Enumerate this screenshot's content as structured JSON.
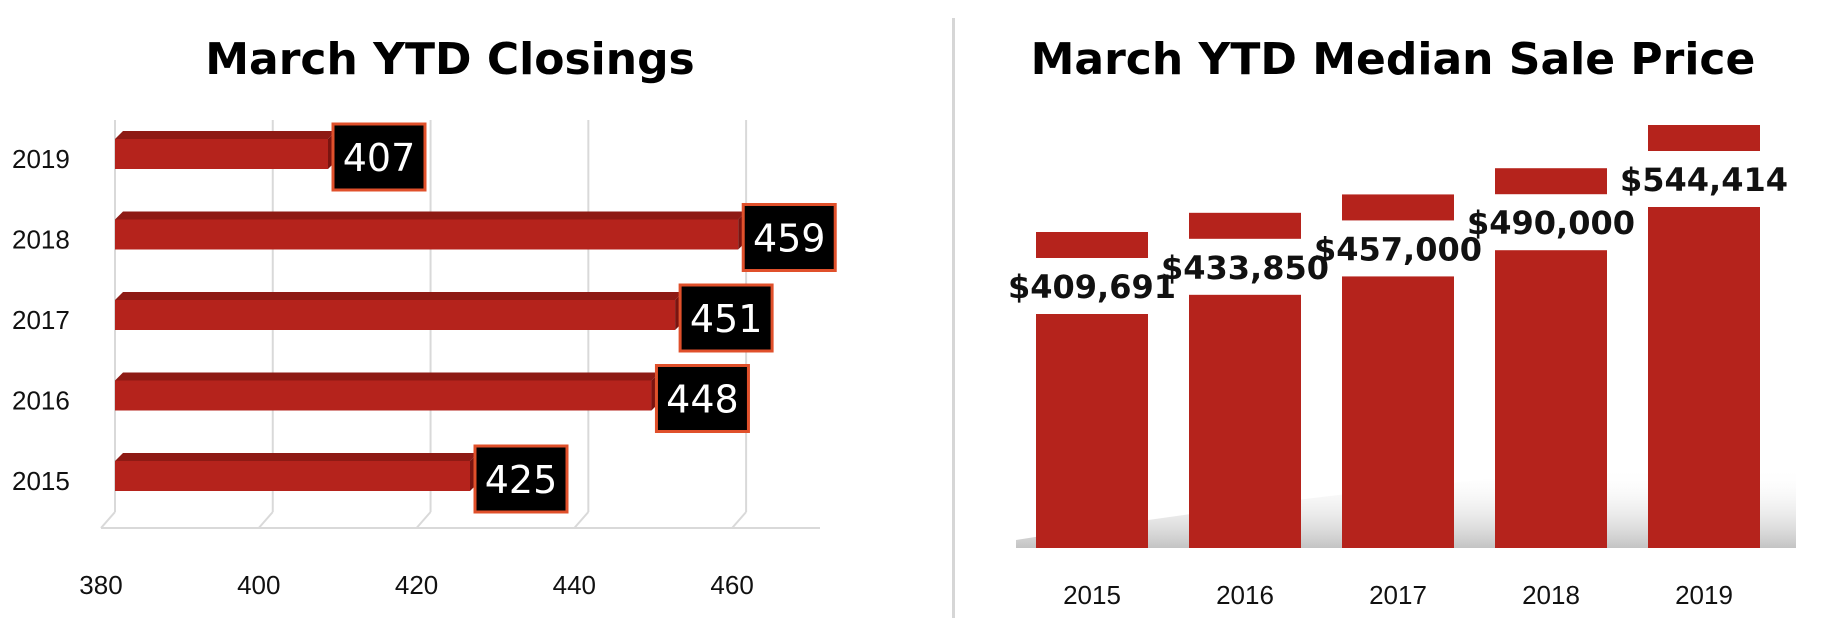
{
  "colors": {
    "bar": "#b5231c",
    "bar_dark": "#7a1410",
    "bar_top": "#8e1a14",
    "label_box": "#000000",
    "label_border": "#e0502b"
  },
  "chart_data": [
    {
      "type": "bar",
      "orientation": "horizontal",
      "title": "March YTD Closings",
      "categories": [
        "2015",
        "2016",
        "2017",
        "2018",
        "2019"
      ],
      "values": [
        425,
        448,
        451,
        459,
        407
      ],
      "data_labels": [
        "425",
        "448",
        "451",
        "459",
        "407"
      ],
      "xlim": [
        380,
        470
      ],
      "x_ticks": [
        "380",
        "400",
        "420",
        "440",
        "460"
      ],
      "grid": true,
      "legend": "none"
    },
    {
      "type": "bar",
      "orientation": "vertical",
      "title": "March YTD Median Sale Price",
      "categories": [
        "2015",
        "2016",
        "2017",
        "2018",
        "2019"
      ],
      "values": [
        409691,
        433850,
        457000,
        490000,
        544414
      ],
      "data_labels": [
        "$409,691",
        "$433,850",
        "$457,000",
        "$490,000",
        "$544,414"
      ],
      "grid": false,
      "legend": "none"
    }
  ]
}
